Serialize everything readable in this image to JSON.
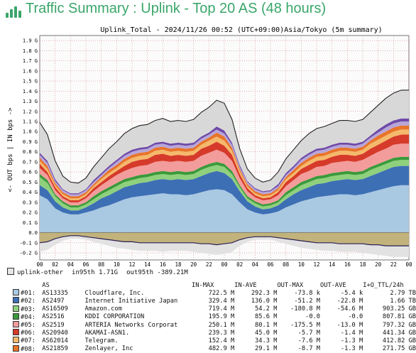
{
  "page": {
    "title": "Traffic Summary : Uplink - Top 20 AS (48 hours)"
  },
  "chart_data": {
    "type": "area",
    "title": "Uplink_Total - 2024/11/26 00:52 (UTC+09:00)Asia/Tokyo (5m summary)",
    "ylabel": "<- OUT bps | IN bps ->",
    "ylim": [
      -0.27,
      1.95
    ],
    "y_ticks": [
      1.9,
      1.8,
      1.7,
      1.6,
      1.5,
      1.4,
      1.3,
      1.2,
      1.1,
      1.0,
      0.9,
      0.8,
      0.7,
      0.6,
      0.5,
      0.4,
      0.3,
      0.2,
      0.1,
      0.0,
      -0.1,
      -0.2
    ],
    "y_tick_labels": [
      "1.9 G",
      "1.8 G",
      "1.7 G",
      "1.6 G",
      "1.5 G",
      "1.4 G",
      "1.3 G",
      "1.2 G",
      "1.1 G",
      "1.0 G",
      "0.9 G",
      "0.8 G",
      "0.7 G",
      "0.6 G",
      "0.5 G",
      "0.4 G",
      "0.3 G",
      "0.2 G",
      "0.1 G",
      "0.0",
      "-0.1 G",
      "-0.2 G"
    ],
    "x_tick_labels": [
      "00",
      "02",
      "04",
      "06",
      "08",
      "10",
      "12",
      "14",
      "16",
      "18",
      "20",
      "22",
      "00",
      "02",
      "04",
      "06",
      "08",
      "10",
      "12",
      "14",
      "16",
      "18",
      "20",
      "22",
      "00"
    ],
    "x_hours": [
      0,
      2,
      4,
      6,
      8,
      10,
      12,
      14,
      16,
      18,
      20,
      22,
      24,
      26,
      28,
      30,
      32,
      34,
      36,
      38,
      40,
      42,
      44,
      46,
      48
    ],
    "grid": true,
    "x_hour": [
      0,
      1,
      2,
      3,
      4,
      5,
      6,
      7,
      8,
      9,
      10,
      11,
      12,
      13,
      14,
      15,
      16,
      17,
      18,
      19,
      20,
      21,
      22,
      23,
      24,
      25,
      26,
      27,
      28,
      29,
      30,
      31,
      32,
      33,
      34,
      35,
      36,
      37,
      38,
      39,
      40,
      41,
      42,
      43,
      44,
      45,
      46,
      47,
      48
    ],
    "series": [
      {
        "name": "Cloudflare, Inc.",
        "color": "#a9c8e2",
        "values": [
          0.37,
          0.33,
          0.24,
          0.2,
          0.18,
          0.18,
          0.2,
          0.22,
          0.25,
          0.27,
          0.3,
          0.33,
          0.35,
          0.36,
          0.37,
          0.38,
          0.39,
          0.38,
          0.38,
          0.37,
          0.38,
          0.4,
          0.42,
          0.43,
          0.42,
          0.38,
          0.3,
          0.23,
          0.2,
          0.18,
          0.19,
          0.21,
          0.25,
          0.28,
          0.31,
          0.33,
          0.35,
          0.36,
          0.37,
          0.38,
          0.38,
          0.37,
          0.38,
          0.4,
          0.42,
          0.44,
          0.46,
          0.47,
          0.47
        ]
      },
      {
        "name": "Internet Initiative Japan",
        "color": "#3d6fb5",
        "values": [
          0.1,
          0.09,
          0.07,
          0.05,
          0.04,
          0.04,
          0.05,
          0.07,
          0.09,
          0.1,
          0.11,
          0.12,
          0.12,
          0.13,
          0.13,
          0.14,
          0.14,
          0.14,
          0.15,
          0.15,
          0.15,
          0.16,
          0.17,
          0.18,
          0.17,
          0.15,
          0.11,
          0.08,
          0.06,
          0.05,
          0.05,
          0.06,
          0.08,
          0.1,
          0.11,
          0.12,
          0.13,
          0.13,
          0.14,
          0.14,
          0.15,
          0.15,
          0.15,
          0.16,
          0.17,
          0.18,
          0.19,
          0.19,
          0.19
        ]
      },
      {
        "name": "Amazon.com",
        "color": "#8fd07d",
        "values": [
          0.08,
          0.07,
          0.05,
          0.04,
          0.03,
          0.03,
          0.03,
          0.04,
          0.04,
          0.05,
          0.05,
          0.05,
          0.05,
          0.05,
          0.05,
          0.05,
          0.05,
          0.05,
          0.05,
          0.05,
          0.05,
          0.06,
          0.06,
          0.06,
          0.06,
          0.05,
          0.04,
          0.03,
          0.03,
          0.03,
          0.03,
          0.03,
          0.04,
          0.04,
          0.05,
          0.05,
          0.05,
          0.05,
          0.05,
          0.05,
          0.05,
          0.05,
          0.05,
          0.06,
          0.06,
          0.06,
          0.06,
          0.06,
          0.06
        ]
      },
      {
        "name": "KDDI CORPORATION",
        "color": "#3a9a3a",
        "values": [
          0.03,
          0.03,
          0.02,
          0.02,
          0.02,
          0.02,
          0.02,
          0.03,
          0.03,
          0.03,
          0.03,
          0.03,
          0.03,
          0.03,
          0.03,
          0.03,
          0.03,
          0.03,
          0.03,
          0.03,
          0.03,
          0.03,
          0.03,
          0.03,
          0.03,
          0.03,
          0.02,
          0.02,
          0.02,
          0.02,
          0.02,
          0.02,
          0.03,
          0.03,
          0.03,
          0.03,
          0.03,
          0.03,
          0.03,
          0.03,
          0.03,
          0.03,
          0.03,
          0.03,
          0.03,
          0.03,
          0.03,
          0.03,
          0.03
        ]
      },
      {
        "name": "ARTERIA Networks Corporat",
        "color": "#f39c9c",
        "values": [
          0.06,
          0.05,
          0.04,
          0.03,
          0.03,
          0.03,
          0.04,
          0.05,
          0.06,
          0.07,
          0.08,
          0.08,
          0.09,
          0.09,
          0.09,
          0.1,
          0.1,
          0.1,
          0.1,
          0.1,
          0.1,
          0.11,
          0.11,
          0.12,
          0.11,
          0.1,
          0.07,
          0.05,
          0.04,
          0.04,
          0.04,
          0.05,
          0.06,
          0.07,
          0.08,
          0.08,
          0.09,
          0.09,
          0.1,
          0.1,
          0.1,
          0.1,
          0.11,
          0.11,
          0.12,
          0.12,
          0.13,
          0.13,
          0.13
        ]
      },
      {
        "name": "AKAMAI-ASN1",
        "color": "#d63a2a",
        "values": [
          0.04,
          0.03,
          0.03,
          0.02,
          0.02,
          0.02,
          0.02,
          0.03,
          0.03,
          0.04,
          0.04,
          0.05,
          0.06,
          0.06,
          0.06,
          0.07,
          0.07,
          0.06,
          0.06,
          0.06,
          0.06,
          0.07,
          0.07,
          0.08,
          0.07,
          0.06,
          0.04,
          0.03,
          0.02,
          0.02,
          0.02,
          0.03,
          0.04,
          0.04,
          0.05,
          0.06,
          0.06,
          0.06,
          0.06,
          0.07,
          0.06,
          0.06,
          0.06,
          0.07,
          0.07,
          0.08,
          0.08,
          0.09,
          0.09
        ]
      },
      {
        "name": "Telegram",
        "color": "#f5b96b",
        "values": [
          0.03,
          0.03,
          0.02,
          0.02,
          0.02,
          0.02,
          0.02,
          0.02,
          0.03,
          0.03,
          0.03,
          0.04,
          0.04,
          0.04,
          0.04,
          0.04,
          0.04,
          0.04,
          0.04,
          0.04,
          0.04,
          0.04,
          0.05,
          0.05,
          0.05,
          0.04,
          0.03,
          0.02,
          0.02,
          0.02,
          0.02,
          0.02,
          0.03,
          0.03,
          0.03,
          0.04,
          0.04,
          0.04,
          0.04,
          0.04,
          0.04,
          0.04,
          0.04,
          0.05,
          0.05,
          0.05,
          0.05,
          0.05,
          0.05
        ]
      },
      {
        "name": "Zenlayer, Inc",
        "color": "#e8742a",
        "values": [
          0.03,
          0.03,
          0.02,
          0.02,
          0.02,
          0.02,
          0.02,
          0.02,
          0.02,
          0.03,
          0.03,
          0.03,
          0.03,
          0.03,
          0.03,
          0.03,
          0.03,
          0.03,
          0.03,
          0.03,
          0.03,
          0.03,
          0.03,
          0.04,
          0.04,
          0.03,
          0.02,
          0.02,
          0.02,
          0.02,
          0.02,
          0.02,
          0.02,
          0.03,
          0.03,
          0.03,
          0.03,
          0.03,
          0.03,
          0.03,
          0.03,
          0.03,
          0.03,
          0.03,
          0.04,
          0.04,
          0.04,
          0.04,
          0.04
        ]
      },
      {
        "name": "",
        "color": "#b8a6d9",
        "values": [
          0.03,
          0.03,
          0.02,
          0.02,
          0.02,
          0.02,
          0.02,
          0.02,
          0.02,
          0.02,
          0.03,
          0.03,
          0.03,
          0.03,
          0.03,
          0.03,
          0.03,
          0.03,
          0.03,
          0.03,
          0.03,
          0.03,
          0.03,
          0.03,
          0.03,
          0.03,
          0.02,
          0.02,
          0.02,
          0.02,
          0.02,
          0.02,
          0.02,
          0.02,
          0.03,
          0.03,
          0.03,
          0.03,
          0.03,
          0.03,
          0.03,
          0.03,
          0.03,
          0.03,
          0.03,
          0.04,
          0.04,
          0.04,
          0.04
        ]
      },
      {
        "name": "",
        "color": "#6e4aa8",
        "values": [
          0.02,
          0.02,
          0.02,
          0.01,
          0.01,
          0.01,
          0.01,
          0.02,
          0.02,
          0.02,
          0.02,
          0.02,
          0.02,
          0.02,
          0.02,
          0.02,
          0.02,
          0.02,
          0.02,
          0.02,
          0.02,
          0.02,
          0.02,
          0.03,
          0.03,
          0.02,
          0.02,
          0.01,
          0.01,
          0.01,
          0.01,
          0.02,
          0.02,
          0.02,
          0.02,
          0.02,
          0.02,
          0.02,
          0.02,
          0.02,
          0.02,
          0.02,
          0.02,
          0.02,
          0.03,
          0.03,
          0.03,
          0.03,
          0.03
        ]
      },
      {
        "name": "",
        "color": "#d8d8d8",
        "values": [
          0.3,
          0.26,
          0.18,
          0.13,
          0.11,
          0.1,
          0.11,
          0.13,
          0.15,
          0.17,
          0.18,
          0.2,
          0.21,
          0.22,
          0.22,
          0.22,
          0.23,
          0.22,
          0.22,
          0.22,
          0.23,
          0.24,
          0.25,
          0.26,
          0.27,
          0.23,
          0.16,
          0.12,
          0.1,
          0.09,
          0.1,
          0.12,
          0.14,
          0.16,
          0.17,
          0.19,
          0.2,
          0.21,
          0.21,
          0.22,
          0.22,
          0.22,
          0.22,
          0.23,
          0.24,
          0.26,
          0.27,
          0.28,
          0.28
        ]
      }
    ],
    "out_total": [
      -0.1,
      -0.09,
      -0.06,
      -0.04,
      -0.03,
      -0.03,
      -0.04,
      -0.05,
      -0.06,
      -0.07,
      -0.08,
      -0.09,
      -0.09,
      -0.1,
      -0.1,
      -0.1,
      -0.1,
      -0.1,
      -0.1,
      -0.1,
      -0.1,
      -0.11,
      -0.11,
      -0.12,
      -0.11,
      -0.1,
      -0.07,
      -0.05,
      -0.04,
      -0.04,
      -0.04,
      -0.05,
      -0.06,
      -0.07,
      -0.08,
      -0.09,
      -0.1,
      -0.1,
      -0.1,
      -0.11,
      -0.11,
      -0.11,
      -0.11,
      -0.12,
      -0.12,
      -0.13,
      -0.13,
      -0.13,
      -0.13
    ],
    "out_peak": [
      -0.19,
      -0.17,
      -0.12,
      -0.08,
      -0.06,
      -0.06,
      -0.07,
      -0.09,
      -0.11,
      -0.13,
      -0.15,
      -0.16,
      -0.17,
      -0.18,
      -0.18,
      -0.18,
      -0.19,
      -0.18,
      -0.18,
      -0.18,
      -0.19,
      -0.2,
      -0.21,
      -0.22,
      -0.21,
      -0.19,
      -0.13,
      -0.09,
      -0.07,
      -0.07,
      -0.07,
      -0.09,
      -0.11,
      -0.13,
      -0.15,
      -0.16,
      -0.17,
      -0.18,
      -0.18,
      -0.19,
      -0.19,
      -0.19,
      -0.2,
      -0.21,
      -0.22,
      -0.23,
      -0.24,
      -0.24,
      -0.24
    ]
  },
  "legend": {
    "uplink_other": {
      "label": "uplink-other",
      "in95": "in95th   1.71G",
      "out95": "out95th -389.21M"
    },
    "columns": {
      "rank": "",
      "as": "AS",
      "name": "",
      "in_max": "IN-MAX",
      "in_ave": "IN-AVE",
      "out_max": "OUT-MAX",
      "out_ave": "OUT-AVE",
      "ttl": "I+O_TTL/24h"
    },
    "rows": [
      {
        "rank": "#01:",
        "as": "AS13335",
        "name": "Cloudflare, Inc.",
        "in_max": "722.5 M",
        "in_ave": "292.3 M",
        "out_max": "-73.8 k",
        "out_ave": "-5.4 k",
        "ttl": "2.79 TB",
        "color": "#a9c8e2"
      },
      {
        "rank": "#02:",
        "as": "AS2497",
        "name": "Internet Initiative Japan",
        "in_max": "329.4 M",
        "in_ave": "136.0 M",
        "out_max": "-51.2 M",
        "out_ave": "-22.8 M",
        "ttl": "1.66 TB",
        "color": "#3d6fb5"
      },
      {
        "rank": "#03:",
        "as": "AS16509",
        "name": "Amazon.com",
        "in_max": "719.4 M",
        "in_ave": "54.2 M",
        "out_max": "-180.8 M",
        "out_ave": "-54.6 M",
        "ttl": "903.25 GB",
        "color": "#8fd07d"
      },
      {
        "rank": "#04:",
        "as": "AS2516",
        "name": "KDDI CORPORATION",
        "in_max": "195.9 M",
        "in_ave": "85.6 M",
        "out_max": "-0.0",
        "out_ave": "-0.0",
        "ttl": "807.81 GB",
        "color": "#3a9a3a"
      },
      {
        "rank": "#05:",
        "as": "AS2519",
        "name": "ARTERIA Networks Corporat",
        "in_max": "250.1 M",
        "in_ave": "80.1 M",
        "out_max": "-175.5 M",
        "out_ave": "-13.0 M",
        "ttl": "797.32 GB",
        "color": "#f39c9c"
      },
      {
        "rank": "#06:",
        "as": "AS20940",
        "name": "AKAMAI-ASN1.",
        "in_max": "239.3 M",
        "in_ave": "45.0 M",
        "out_max": "-5.7 M",
        "out_ave": "-1.4 M",
        "ttl": "441.34 GB",
        "color": "#d63a2a"
      },
      {
        "rank": "#07:",
        "as": "AS62014",
        "name": "Telegram.",
        "in_max": "152.4 M",
        "in_ave": "34.3 M",
        "out_max": "-7.6 M",
        "out_ave": "-1.3 M",
        "ttl": "412.82 GB",
        "color": "#f5b96b"
      },
      {
        "rank": "#08:",
        "as": "AS21859",
        "name": "Zenlayer, Inc",
        "in_max": "482.9 M",
        "in_ave": "29.1 M",
        "out_max": "-8.7 M",
        "out_ave": "-1.3 M",
        "ttl": "271.75 GB",
        "color": "#e8742a"
      }
    ]
  }
}
